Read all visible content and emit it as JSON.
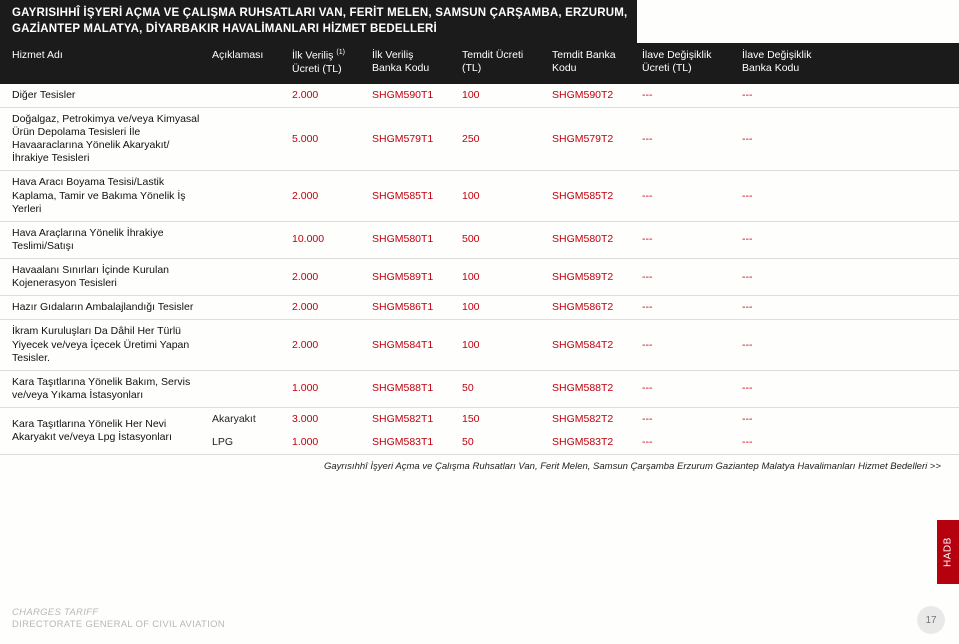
{
  "title_line1": "GAYRISIHHÎ İŞYERİ AÇMA VE ÇALIŞMA RUHSATLARI VAN, FERİT MELEN, SAMSUN ÇARŞAMBA, ERZURUM,",
  "title_line2": "GAZİANTEP MALATYA, DİYARBAKIR HAVALİMANLARI HİZMET BEDELLERİ",
  "headers": {
    "c0": "Hizmet Adı",
    "c1": "Açıklaması",
    "c2a": "İlk Veriliş",
    "c2b": "Ücreti (TL)",
    "c2sup": "(1)",
    "c3a": "İlk Veriliş",
    "c3b": "Banka Kodu",
    "c4a": "Temdit Ücreti",
    "c4b": "(TL)",
    "c5a": "Temdit Banka",
    "c5b": "Kodu",
    "c6a": "İlave Değişiklik",
    "c6b": "Ücreti (TL)",
    "c7a": "İlave Değişiklik",
    "c7b": "Banka Kodu"
  },
  "rows": [
    {
      "name": "Diğer Tesisler",
      "desc": "",
      "fee": "2.000",
      "code1": "SHGM590T1",
      "ren": "100",
      "code2": "SHGM590T2",
      "chg": "---",
      "chgc": "---"
    },
    {
      "name": "Doğalgaz, Petrokimya ve/veya Kimyasal Ürün Depolama Tesisleri İle Havaaraclarına Yönelik Akaryakıt/İhrakiye Tesisleri",
      "desc": "",
      "fee": "5.000",
      "code1": "SHGM579T1",
      "ren": "250",
      "code2": "SHGM579T2",
      "chg": "---",
      "chgc": "---"
    },
    {
      "name": "Hava Aracı Boyama Tesisi/Lastik Kaplama, Tamir ve Bakıma Yönelik İş Yerleri",
      "desc": "",
      "fee": "2.000",
      "code1": "SHGM585T1",
      "ren": "100",
      "code2": "SHGM585T2",
      "chg": "---",
      "chgc": "---"
    },
    {
      "name": "Hava Araçlarına Yönelik İhrakiye Teslimi/Satışı",
      "desc": "",
      "fee": "10.000",
      "code1": "SHGM580T1",
      "ren": "500",
      "code2": "SHGM580T2",
      "chg": "---",
      "chgc": "---"
    },
    {
      "name": "Havaalanı Sınırları İçinde Kurulan Kojenerasyon Tesisleri",
      "desc": "",
      "fee": "2.000",
      "code1": "SHGM589T1",
      "ren": "100",
      "code2": "SHGM589T2",
      "chg": "---",
      "chgc": "---"
    },
    {
      "name": "Hazır Gıdaların Ambalajlandığı Tesisler",
      "desc": "",
      "fee": "2.000",
      "code1": "SHGM586T1",
      "ren": "100",
      "code2": "SHGM586T2",
      "chg": "---",
      "chgc": "---"
    },
    {
      "name": "İkram Kuruluşları Da Dâhil Her Türlü Yiyecek ve/veya İçecek Üretimi Yapan Tesisler.",
      "desc": "",
      "fee": "2.000",
      "code1": "SHGM584T1",
      "ren": "100",
      "code2": "SHGM584T2",
      "chg": "---",
      "chgc": "---"
    },
    {
      "name": "Kara Taşıtlarına Yönelik Bakım, Servis ve/veya Yıkama İstasyonları",
      "desc": "",
      "fee": "1.000",
      "code1": "SHGM588T1",
      "ren": "50",
      "code2": "SHGM588T2",
      "chg": "---",
      "chgc": "---"
    }
  ],
  "lastRow": {
    "name": "Kara Taşıtlarına Yönelik Her Nevi Akaryakıt ve/veya Lpg İstasyonları",
    "sub": [
      {
        "desc": "Akaryakıt",
        "fee": "3.000",
        "code1": "SHGM582T1",
        "ren": "150",
        "code2": "SHGM582T2",
        "chg": "---",
        "chgc": "---"
      },
      {
        "desc": "LPG",
        "fee": "1.000",
        "code1": "SHGM583T1",
        "ren": "50",
        "code2": "SHGM583T2",
        "chg": "---",
        "chgc": "---"
      }
    ]
  },
  "footnote": "Gayrısıhhî İşyeri Açma ve Çalışma Ruhsatları Van, Ferit Melen, Samsun Çarşamba Erzurum  Gaziantep Malatya Havalimanları Hizmet Bedelleri",
  "footnote_arrow": ">>",
  "footer1": "CHARGES TARIFF",
  "footer2": "DIRECTORATE  GENERAL OF CIVIL AVIATION",
  "pagenum": "17",
  "sidetab": "HADB",
  "colors": {
    "red": "#c1000d",
    "dark": "#1b1b1b"
  }
}
